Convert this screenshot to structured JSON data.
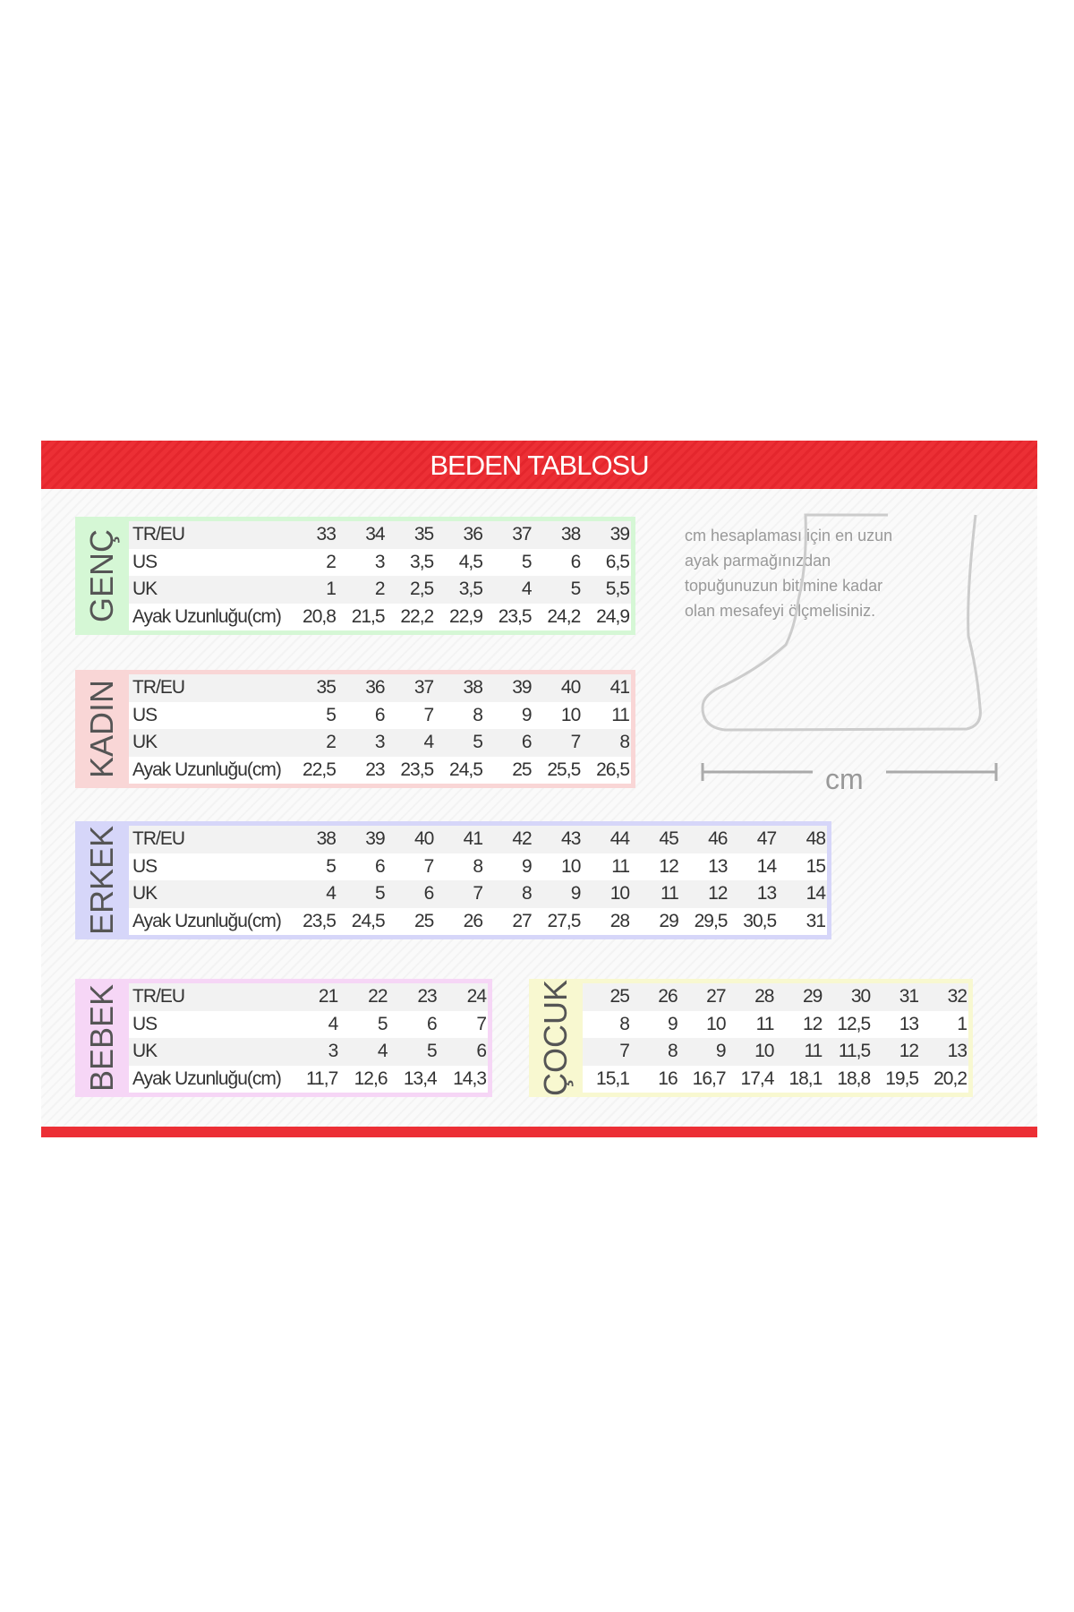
{
  "title": "BEDEN TABLOSU",
  "note": "cm hesaplaması için en uzun ayak parmağınızdan topuğunuzun bitimine kadar olan mesafeyi ölçmelisiniz.",
  "cm_label": "cm",
  "colors": {
    "header": "#ec2f35",
    "genc": "#d5f7d5",
    "kadin": "#f9d6d6",
    "erkek": "#d6d6f9",
    "bebek": "#f6d6f6",
    "cocuk": "#f8f8d0"
  },
  "tables": [
    {
      "name": "GENÇ",
      "rows": [
        {
          "label": "TR/EU",
          "values": [
            "33",
            "34",
            "35",
            "36",
            "37",
            "38",
            "39"
          ]
        },
        {
          "label": "US",
          "values": [
            "2",
            "3",
            "3,5",
            "4,5",
            "5",
            "6",
            "6,5"
          ]
        },
        {
          "label": "UK",
          "values": [
            "1",
            "2",
            "2,5",
            "3,5",
            "4",
            "5",
            "5,5"
          ]
        },
        {
          "label": "Ayak Uzunluğu(cm)",
          "values": [
            "20,8",
            "21,5",
            "22,2",
            "22,9",
            "23,5",
            "24,2",
            "24,9"
          ]
        }
      ]
    },
    {
      "name": "KADIN",
      "rows": [
        {
          "label": "TR/EU",
          "values": [
            "35",
            "36",
            "37",
            "38",
            "39",
            "40",
            "41"
          ]
        },
        {
          "label": "US",
          "values": [
            "5",
            "6",
            "7",
            "8",
            "9",
            "10",
            "11"
          ]
        },
        {
          "label": "UK",
          "values": [
            "2",
            "3",
            "4",
            "5",
            "6",
            "7",
            "8"
          ]
        },
        {
          "label": "Ayak Uzunluğu(cm)",
          "values": [
            "22,5",
            "23",
            "23,5",
            "24,5",
            "25",
            "25,5",
            "26,5"
          ]
        }
      ]
    },
    {
      "name": "ERKEK",
      "rows": [
        {
          "label": "TR/EU",
          "values": [
            "38",
            "39",
            "40",
            "41",
            "42",
            "43",
            "44",
            "45",
            "46",
            "47",
            "48"
          ]
        },
        {
          "label": "US",
          "values": [
            "5",
            "6",
            "7",
            "8",
            "9",
            "10",
            "11",
            "12",
            "13",
            "14",
            "15"
          ]
        },
        {
          "label": "UK",
          "values": [
            "4",
            "5",
            "6",
            "7",
            "8",
            "9",
            "10",
            "11",
            "12",
            "13",
            "14"
          ]
        },
        {
          "label": "Ayak Uzunluğu(cm)",
          "values": [
            "23,5",
            "24,5",
            "25",
            "26",
            "27",
            "27,5",
            "28",
            "29",
            "29,5",
            "30,5",
            "31"
          ]
        }
      ]
    },
    {
      "name": "BEBEK",
      "rows": [
        {
          "label": "TR/EU",
          "values": [
            "21",
            "22",
            "23",
            "24"
          ]
        },
        {
          "label": "US",
          "values": [
            "4",
            "5",
            "6",
            "7"
          ]
        },
        {
          "label": "UK",
          "values": [
            "3",
            "4",
            "5",
            "6"
          ]
        },
        {
          "label": "Ayak Uzunluğu(cm)",
          "values": [
            "11,7",
            "12,6",
            "13,4",
            "14,3"
          ]
        }
      ]
    },
    {
      "name": "ÇOCUK",
      "rows": [
        {
          "values": [
            "25",
            "26",
            "27",
            "28",
            "29",
            "30",
            "31",
            "32"
          ]
        },
        {
          "values": [
            "8",
            "9",
            "10",
            "11",
            "12",
            "12,5",
            "13",
            "1"
          ]
        },
        {
          "values": [
            "7",
            "8",
            "9",
            "10",
            "11",
            "11,5",
            "12",
            "13"
          ]
        },
        {
          "values": [
            "15,1",
            "16",
            "16,7",
            "17,4",
            "18,1",
            "18,8",
            "19,5",
            "20,2"
          ]
        }
      ]
    }
  ]
}
